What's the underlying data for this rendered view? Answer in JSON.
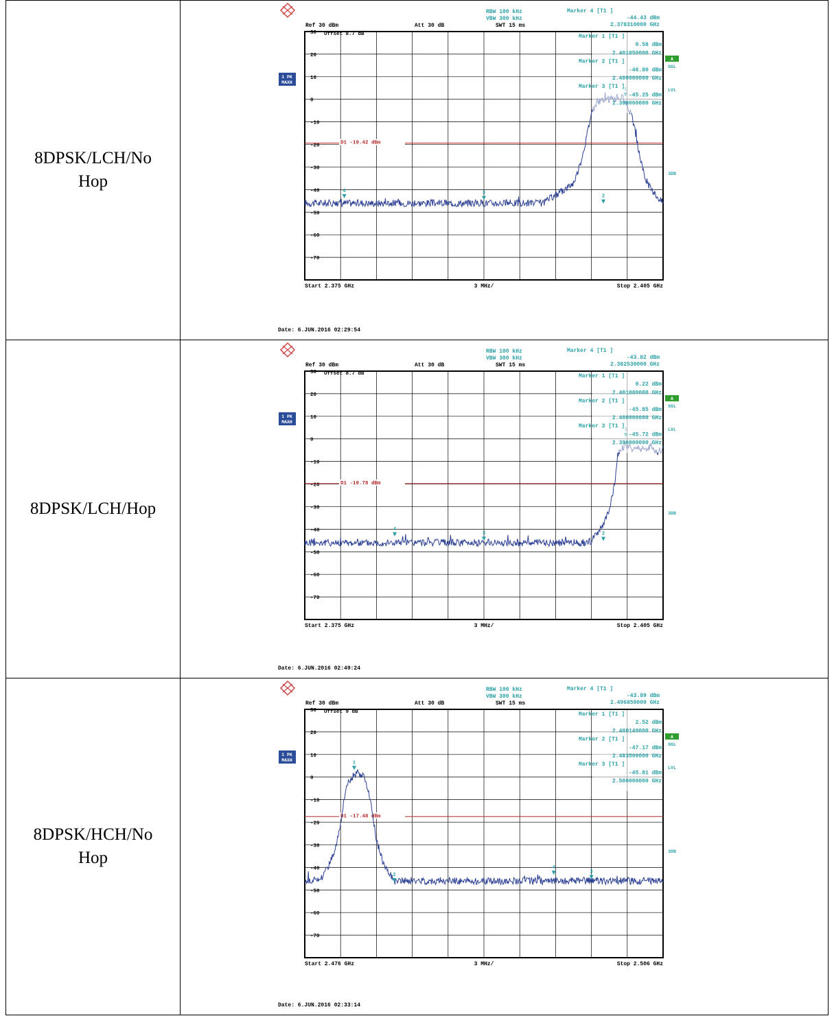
{
  "colors": {
    "trace": "#2b3f93",
    "marker": "#2aa0a6",
    "limit": "#b42a2a",
    "grid": "#000000",
    "badge": "#2b4c98",
    "green": "#2f9e2f"
  },
  "rows": [
    {
      "label": "8DPSK/LCH/No Hop",
      "plot": {
        "header": {
          "rbw": "RBW 100 kHz",
          "vbw": "VBW 300 kHz",
          "swt": "SWT 15 ms",
          "ref": "Ref 30 dBm",
          "att": "Att 30 dB",
          "offset": "Offset 8.7 dB",
          "trace_badge": [
            "1 PK",
            "MAXH"
          ],
          "side_labels": [
            "A",
            "SGL",
            "LVL",
            "3DB"
          ],
          "marker_main": [
            "Marker 4 [T1 ]",
            "-44.43 dBm",
            "2.378310000 GHz"
          ]
        },
        "marker_box": [
          "Marker 1 [T1 ]",
          "0.58 dBm",
          "2.401850000 GHz",
          "Marker 2 [T1 ]",
          "-46.80 dBm",
          "2.400000000 GHz",
          "Marker 3 [T1 ]",
          "-45.25 dBm",
          "2.390000000 GHz"
        ],
        "d1_label": "D1 -19.42 dBm",
        "start": "Start 2.375 GHz",
        "span_div": "3 MHz/",
        "stop": "Stop 2.405 GHz",
        "date": "Date: 6.JUN.2016 02:29:54"
      },
      "chart_data": {
        "type": "line",
        "x_range_ghz": [
          2.375,
          2.405
        ],
        "ylim": [
          -80,
          30
        ],
        "y_ticks": [
          30,
          20,
          10,
          0,
          -10,
          -20,
          -30,
          -40,
          -50,
          -60,
          -70
        ],
        "d1_dbm": -19.42,
        "noise_floor_dbm": -46,
        "series": [
          {
            "values": [
              [
                2.375,
                -46
              ],
              [
                2.395,
                -46
              ],
              [
                2.3955,
                -44
              ],
              [
                2.3965,
                -41
              ],
              [
                2.3975,
                -37
              ],
              [
                2.398,
                -30
              ],
              [
                2.3985,
                -19
              ],
              [
                2.399,
                -6
              ],
              [
                2.3995,
                -1
              ],
              [
                2.4005,
                0
              ],
              [
                2.4015,
                1
              ],
              [
                2.402,
                -2
              ],
              [
                2.4025,
                -10
              ],
              [
                2.403,
                -24
              ],
              [
                2.4035,
                -35
              ],
              [
                2.404,
                -40
              ],
              [
                2.405,
                -46
              ]
            ]
          }
        ],
        "markers": [
          {
            "id": "1",
            "x": 2.40185,
            "y": 0.58
          },
          {
            "id": "2",
            "x": 2.4,
            "y": -46.8
          },
          {
            "id": "3",
            "x": 2.39,
            "y": -45.25
          },
          {
            "id": "4",
            "x": 2.37831,
            "y": -44.43
          }
        ]
      }
    },
    {
      "label": "8DPSK/LCH/Hop",
      "plot": {
        "header": {
          "rbw": "RBW 100 kHz",
          "vbw": "VBW 300 kHz",
          "swt": "SWT 15 ms",
          "ref": "Ref 30 dBm",
          "att": "Att 30 dB",
          "offset": "Offset 8.7 dB",
          "trace_badge": [
            "1 PK",
            "MAXH"
          ],
          "side_labels": [
            "A",
            "SGL",
            "LVL",
            "3DB"
          ],
          "marker_main": [
            "Marker 4 [T1 ]",
            "-43.82 dBm",
            "2.382530000 GHz"
          ]
        },
        "marker_box": [
          "Marker 1 [T1 ]",
          "0.22 dBm",
          "2.401880000 GHz",
          "Marker 2 [T1 ]",
          "-45.85 dBm",
          "2.400000000 GHz",
          "Marker 3 [T1 ]",
          "-45.72 dBm",
          "2.390000000 GHz"
        ],
        "d1_label": "D1 -19.78 dBm",
        "start": "Start 2.375 GHz",
        "span_div": "3 MHz/",
        "stop": "Stop 2.405 GHz",
        "date": "Date: 6.JUN.2016 02:49:24"
      },
      "chart_data": {
        "type": "line",
        "x_range_ghz": [
          2.375,
          2.405
        ],
        "ylim": [
          -80,
          30
        ],
        "y_ticks": [
          30,
          20,
          10,
          0,
          -10,
          -20,
          -30,
          -40,
          -50,
          -60,
          -70
        ],
        "d1_dbm": -19.78,
        "noise_floor_dbm": -46,
        "series": [
          {
            "values": [
              [
                2.375,
                -46
              ],
              [
                2.3985,
                -46
              ],
              [
                2.399,
                -45
              ],
              [
                2.3995,
                -42
              ],
              [
                2.4,
                -38
              ],
              [
                2.4005,
                -32
              ],
              [
                2.401,
                -18
              ],
              [
                2.4012,
                -7
              ],
              [
                2.4015,
                -4
              ],
              [
                2.402,
                -3
              ],
              [
                2.4025,
                -5
              ],
              [
                2.403,
                -4
              ],
              [
                2.4035,
                -5
              ],
              [
                2.404,
                -3
              ],
              [
                2.4045,
                -6
              ],
              [
                2.405,
                -4
              ]
            ]
          }
        ],
        "markers": [
          {
            "id": "1",
            "x": 2.40188,
            "y": 0.22
          },
          {
            "id": "2",
            "x": 2.4,
            "y": -45.85
          },
          {
            "id": "3",
            "x": 2.39,
            "y": -45.72
          },
          {
            "id": "4",
            "x": 2.38253,
            "y": -43.82
          }
        ]
      }
    },
    {
      "label": "8DPSK/HCH/No Hop",
      "plot": {
        "header": {
          "rbw": "RBW 100 kHz",
          "vbw": "VBW 300 kHz",
          "swt": "SWT 15 ms",
          "ref": "Ref 30 dBm",
          "att": "Att 30 dB",
          "offset": "Offset 9 dB",
          "trace_badge": [
            "1 PK",
            "MAXH"
          ],
          "side_labels": [
            "A",
            "SGL",
            "LVL",
            "3DB"
          ],
          "marker_main": [
            "Marker 4 [T1 ]",
            "-43.89 dBm",
            "2.496850000 GHz"
          ]
        },
        "marker_box": [
          "Marker 1 [T1 ]",
          "2.52 dBm",
          "2.480140000 GHz",
          "Marker 2 [T1 ]",
          "-47.17 dBm",
          "2.483500000 GHz",
          "Marker 3 [T1 ]",
          "-45.81 dBm",
          "2.500000000 GHz"
        ],
        "d1_label": "D1 -17.48 dBm",
        "start": "Start 2.476 GHz",
        "span_div": "3 MHz/",
        "stop": "Stop 2.506 GHz",
        "date": "Date: 6.JUN.2016 02:33:14"
      },
      "chart_data": {
        "type": "line",
        "x_range_ghz": [
          2.476,
          2.506
        ],
        "ylim": [
          -80,
          30
        ],
        "y_ticks": [
          30,
          20,
          10,
          0,
          -10,
          -20,
          -30,
          -40,
          -50,
          -60,
          -70
        ],
        "d1_dbm": -17.48,
        "noise_floor_dbm": -46,
        "series": [
          {
            "values": [
              [
                2.476,
                -46
              ],
              [
                2.477,
                -46
              ],
              [
                2.4775,
                -44
              ],
              [
                2.478,
                -39
              ],
              [
                2.4785,
                -33
              ],
              [
                2.479,
                -20
              ],
              [
                2.4795,
                -3
              ],
              [
                2.48,
                0
              ],
              [
                2.4805,
                2
              ],
              [
                2.481,
                0
              ],
              [
                2.4815,
                -10
              ],
              [
                2.482,
                -28
              ],
              [
                2.4825,
                -37
              ],
              [
                2.483,
                -42
              ],
              [
                2.4835,
                -46
              ],
              [
                2.506,
                -46
              ]
            ]
          }
        ],
        "markers": [
          {
            "id": "1",
            "x": 2.48014,
            "y": 2.52
          },
          {
            "id": "2",
            "x": 2.4835,
            "y": -47.17
          },
          {
            "id": "3",
            "x": 2.5,
            "y": -45.81
          },
          {
            "id": "4",
            "x": 2.49685,
            "y": -43.89
          }
        ]
      }
    }
  ]
}
